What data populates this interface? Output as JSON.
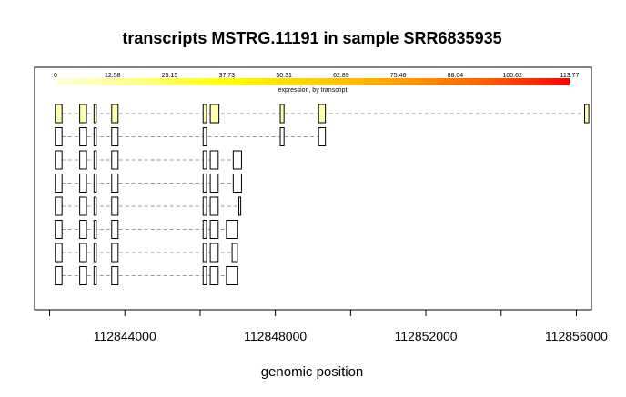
{
  "chart_data": {
    "type": "transcript-structure",
    "title": "transcripts MSTRG.11191 in sample SRR6835935",
    "xlabel": "genomic position",
    "xlim": [
      112841600,
      112856400
    ],
    "x_ticks": [
      112842000,
      112844000,
      112846000,
      112848000,
      112850000,
      112852000,
      112854000,
      112856000
    ],
    "x_tick_labels": [
      {
        "value": 112844000,
        "label": "112844000"
      },
      {
        "value": 112848000,
        "label": "112848000"
      },
      {
        "value": 112852000,
        "label": "112852000"
      },
      {
        "value": 112856000,
        "label": "112856000"
      }
    ],
    "legend": {
      "title": "expression, by transcript",
      "min": 0,
      "max": 113.77,
      "tick_labels": [
        "0",
        "12.58",
        "25.15",
        "37.73",
        "50.31",
        "62.89",
        "75.46",
        "88.04",
        "100.62",
        "113.77"
      ],
      "color_low": "#ffffe0",
      "color_high": "#ff0000"
    },
    "colors": {
      "gradient": [
        "#ffffe0",
        "#ffff80",
        "#ffff00",
        "#ffd000",
        "#ffa000",
        "#ff6000",
        "#ff0000"
      ],
      "exon_stroke": "#000000",
      "intron_line": "#999999"
    },
    "transcripts": [
      {
        "expression": 10.0,
        "exons": [
          [
            112842150,
            112842330
          ],
          [
            112842800,
            112842980
          ],
          [
            112843180,
            112843240
          ],
          [
            112843650,
            112843820
          ],
          [
            112846080,
            112846170
          ],
          [
            112846270,
            112846500
          ],
          [
            112848130,
            112848230
          ],
          [
            112849150,
            112849330
          ],
          [
            112856220,
            112856330
          ]
        ]
      },
      {
        "expression": 0,
        "exons": [
          [
            112842150,
            112842330
          ],
          [
            112842800,
            112842980
          ],
          [
            112843180,
            112843240
          ],
          [
            112843650,
            112843820
          ],
          [
            112846080,
            112846170
          ],
          [
            112848130,
            112848230
          ],
          [
            112849150,
            112849330
          ]
        ]
      },
      {
        "expression": 0,
        "exons": [
          [
            112842150,
            112842330
          ],
          [
            112842800,
            112842980
          ],
          [
            112843180,
            112843240
          ],
          [
            112843650,
            112843820
          ],
          [
            112846080,
            112846170
          ],
          [
            112846270,
            112846480
          ],
          [
            112846880,
            112847100
          ]
        ]
      },
      {
        "expression": 0,
        "exons": [
          [
            112842150,
            112842330
          ],
          [
            112842800,
            112842980
          ],
          [
            112843180,
            112843240
          ],
          [
            112843650,
            112843820
          ],
          [
            112846080,
            112846170
          ],
          [
            112846270,
            112846480
          ],
          [
            112846880,
            112847100
          ]
        ]
      },
      {
        "expression": 0,
        "exons": [
          [
            112842150,
            112842330
          ],
          [
            112842800,
            112842980
          ],
          [
            112843180,
            112843240
          ],
          [
            112843650,
            112843820
          ],
          [
            112846080,
            112846170
          ],
          [
            112846270,
            112846480
          ],
          [
            112847030,
            112847080
          ]
        ]
      },
      {
        "expression": 0,
        "exons": [
          [
            112842150,
            112842330
          ],
          [
            112842800,
            112842980
          ],
          [
            112843180,
            112843240
          ],
          [
            112843650,
            112843820
          ],
          [
            112846080,
            112846170
          ],
          [
            112846270,
            112846480
          ],
          [
            112846700,
            112847000
          ]
        ]
      },
      {
        "expression": 0,
        "exons": [
          [
            112842150,
            112842330
          ],
          [
            112842800,
            112842980
          ],
          [
            112843180,
            112843240
          ],
          [
            112843650,
            112843820
          ],
          [
            112846080,
            112846170
          ],
          [
            112846270,
            112846480
          ],
          [
            112846850,
            112846990
          ]
        ]
      },
      {
        "expression": 0,
        "exons": [
          [
            112842150,
            112842330
          ],
          [
            112842800,
            112842980
          ],
          [
            112843180,
            112843240
          ],
          [
            112843650,
            112843820
          ],
          [
            112846080,
            112846170
          ],
          [
            112846270,
            112846480
          ],
          [
            112846700,
            112847000
          ]
        ]
      }
    ]
  }
}
